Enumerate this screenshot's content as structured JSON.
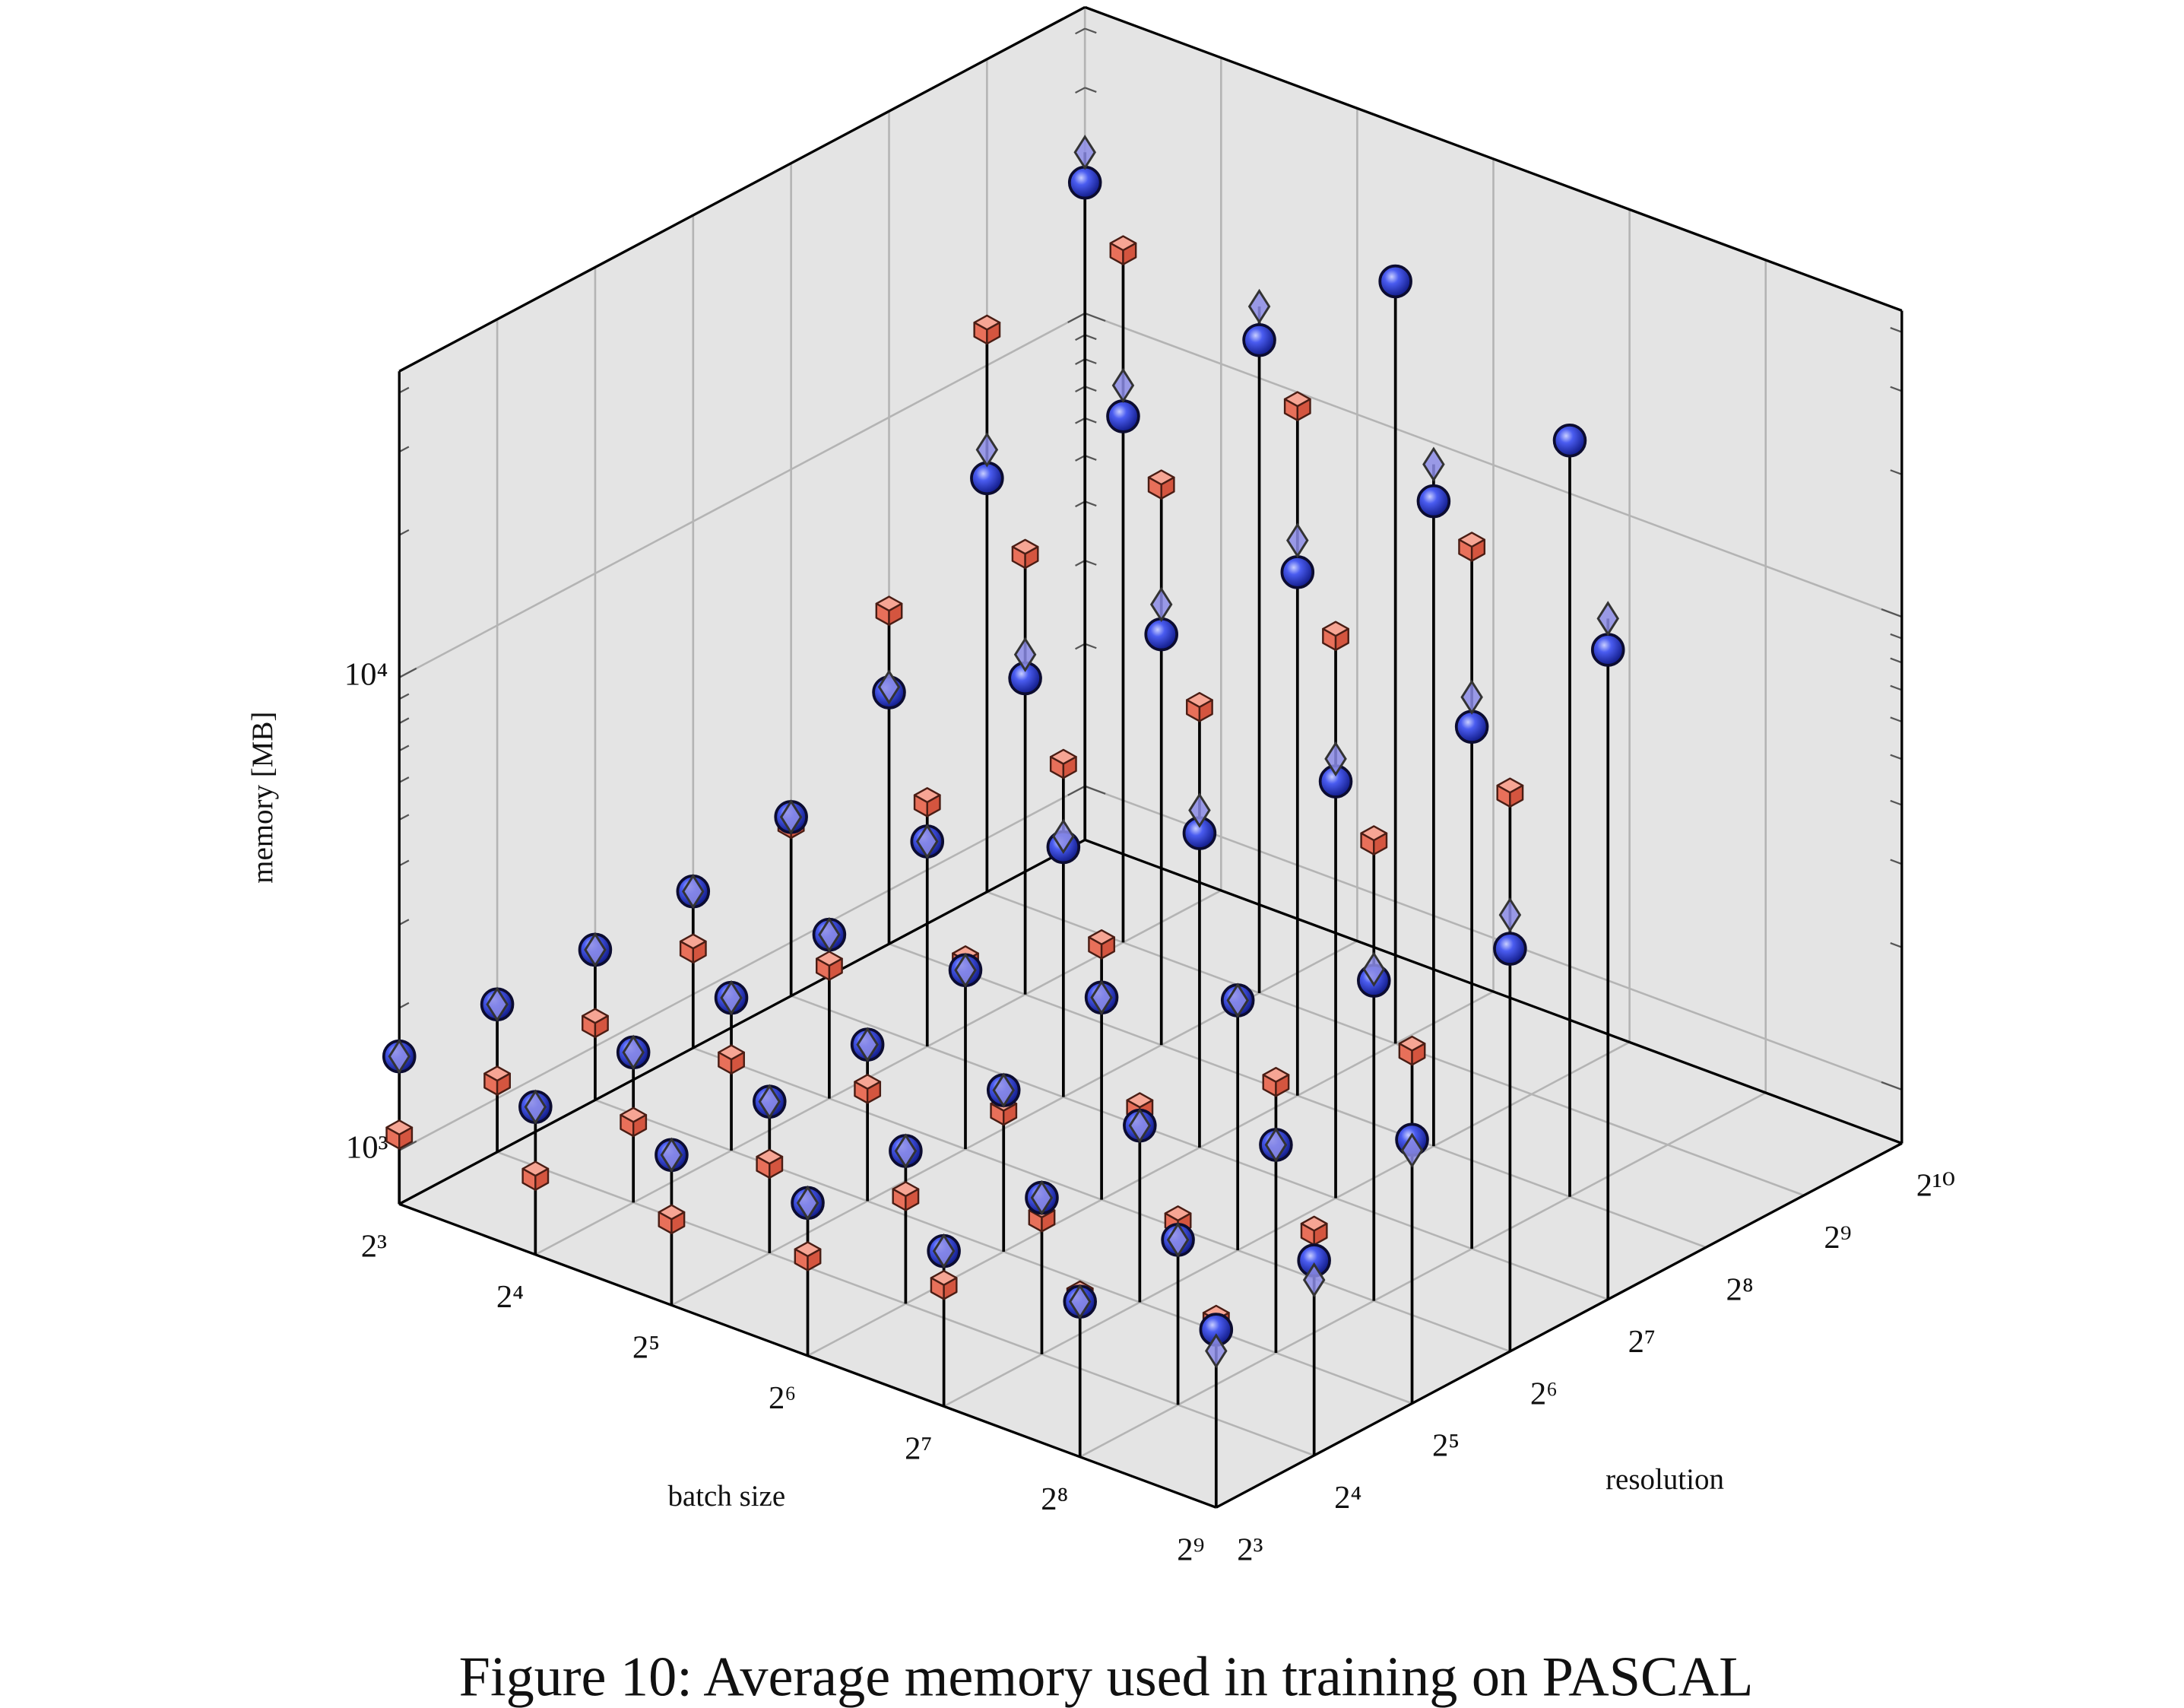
{
  "chart_data": {
    "type": "scatter3d",
    "caption": "Figure 10: Average memory used in training on PASCAL",
    "xlabel": "batch size",
    "ylabel": "resolution",
    "zlabel": "memory [MB]",
    "xlog": true,
    "ylog": true,
    "zlog": true,
    "grid": true,
    "xlim": [
      8,
      512
    ],
    "ylim": [
      8,
      1024
    ],
    "zlim": [
      770,
      44400
    ],
    "xticks": [
      {
        "value": 8,
        "label": "2³"
      },
      {
        "value": 16,
        "label": "2⁴"
      },
      {
        "value": 32,
        "label": "2⁵"
      },
      {
        "value": 64,
        "label": "2⁶"
      },
      {
        "value": 128,
        "label": "2⁷"
      },
      {
        "value": 256,
        "label": "2⁸"
      },
      {
        "value": 512,
        "label": "2⁹"
      }
    ],
    "yticks": [
      {
        "value": 8,
        "label": "2³"
      },
      {
        "value": 16,
        "label": "2⁴"
      },
      {
        "value": 32,
        "label": "2⁵"
      },
      {
        "value": 64,
        "label": "2⁶"
      },
      {
        "value": 128,
        "label": "2⁷"
      },
      {
        "value": 256,
        "label": "2⁸"
      },
      {
        "value": 512,
        "label": "2⁹"
      },
      {
        "value": 1024,
        "label": "2¹⁰"
      }
    ],
    "zticks": [
      {
        "value": 1000,
        "label": "10³"
      },
      {
        "value": 10000,
        "label": "10⁴"
      }
    ],
    "zminorticks": [
      2000,
      3000,
      4000,
      5000,
      6000,
      7000,
      8000,
      9000,
      20000,
      30000,
      40000
    ],
    "x": [
      8,
      16,
      32,
      64,
      128,
      256,
      512,
      8,
      16,
      32,
      64,
      128,
      256,
      512,
      8,
      16,
      32,
      64,
      128,
      256,
      512,
      8,
      16,
      32,
      64,
      128,
      256,
      512,
      8,
      16,
      32,
      64,
      128,
      256,
      512,
      8,
      16,
      32,
      64,
      128,
      256,
      8,
      16,
      32,
      64,
      8
    ],
    "y": [
      8,
      8,
      8,
      8,
      8,
      8,
      8,
      16,
      16,
      16,
      16,
      16,
      16,
      16,
      32,
      32,
      32,
      32,
      32,
      32,
      32,
      64,
      64,
      64,
      64,
      64,
      64,
      64,
      128,
      128,
      128,
      128,
      128,
      128,
      128,
      256,
      256,
      256,
      256,
      256,
      256,
      512,
      512,
      512,
      512,
      1024
    ],
    "series": [
      {
        "marker": "cube",
        "color": "#e8705a",
        "values": [
          1080,
          1130,
          1170,
          1250,
          1390,
          1690,
          1920,
          1090,
          1140,
          1190,
          1300,
          1500,
          1890,
          2300,
          1120,
          1200,
          1330,
          1530,
          1990,
          2880,
          4290,
          1250,
          1470,
          1930,
          2670,
          null,
          7250,
          11700,
          1780,
          2530,
          3900,
          6580,
          11900,
          23500,
          null,
          3900,
          6580,
          11800,
          22100,
          null,
          null,
          11900,
          22400,
          null,
          null,
          null
        ]
      },
      {
        "marker": "sphere",
        "color": "#2f3fe0",
        "values": [
          1580,
          1580,
          1600,
          1620,
          1640,
          1640,
          1830,
          1580,
          1600,
          1610,
          1620,
          1650,
          1720,
          1990,
          1600,
          1620,
          1650,
          1690,
          1820,
          2120,
          2780,
          1650,
          1710,
          1840,
          2060,
          2600,
          3660,
          5470,
          1840,
          2090,
          2600,
          3560,
          5860,
          9780,
          18200,
          2620,
          3590,
          5690,
          9850,
          17800,
          30600,
          5770,
          9980,
          18500,
          31500,
          18900
        ]
      },
      {
        "marker": "diamond",
        "color": "#8c8ce6",
        "values": [
          1580,
          1580,
          1600,
          1620,
          1640,
          1640,
          1650,
          1580,
          1600,
          1610,
          1620,
          1650,
          1720,
          1810,
          1600,
          1620,
          1650,
          1690,
          1820,
          2120,
          2640,
          1650,
          1710,
          1840,
          2060,
          2600,
          3870,
          6450,
          1840,
          2090,
          2740,
          3980,
          6540,
          11300,
          21200,
          2690,
          4030,
          6580,
          11500,
          21300,
          null,
          6630,
          11600,
          21800,
          null,
          21900
        ]
      }
    ]
  }
}
